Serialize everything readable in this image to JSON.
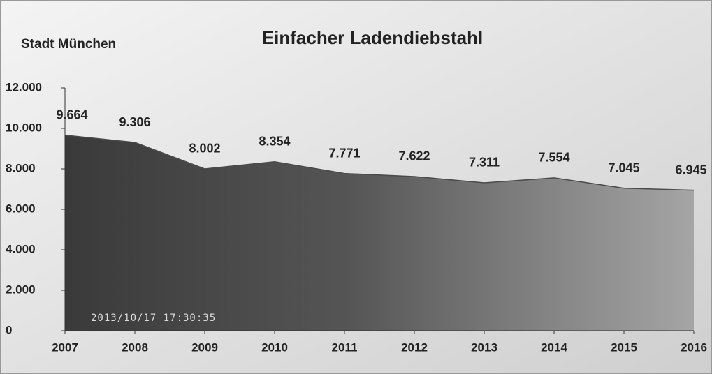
{
  "chart_data": {
    "type": "area",
    "title": "Einfacher  Ladendiebstahl",
    "subtitle": "Stadt München",
    "annotation": "2013/10/17 17:30:35",
    "x": [
      2007,
      2008,
      2009,
      2010,
      2011,
      2012,
      2013,
      2014,
      2015,
      2016
    ],
    "xlim": [
      2007,
      2016
    ],
    "xticks": [
      2007,
      2008,
      2009,
      2010,
      2011,
      2012,
      2013,
      2014,
      2015,
      2016
    ],
    "values": [
      9664,
      9306,
      8002,
      8354,
      7771,
      7622,
      7311,
      7554,
      7045,
      6945
    ],
    "value_labels": [
      "9.664",
      "9.306",
      "8.002",
      "8.354",
      "7.771",
      "7.622",
      "7.311",
      "7.554",
      "7.045",
      "6.945"
    ],
    "color": "#4a4a4a",
    "ylim": [
      0,
      12000
    ],
    "yticks": [
      0,
      {
        "value": 2000,
        "label": "2.000"
      },
      {
        "value": 4000,
        "label": "4.000"
      },
      {
        "value": 6000,
        "label": "6.000"
      },
      {
        "value": 8000,
        "label": "8.000"
      },
      {
        "value": 10000,
        "label": "10.000"
      },
      {
        "value": 12000,
        "label": "12.000"
      }
    ]
  }
}
